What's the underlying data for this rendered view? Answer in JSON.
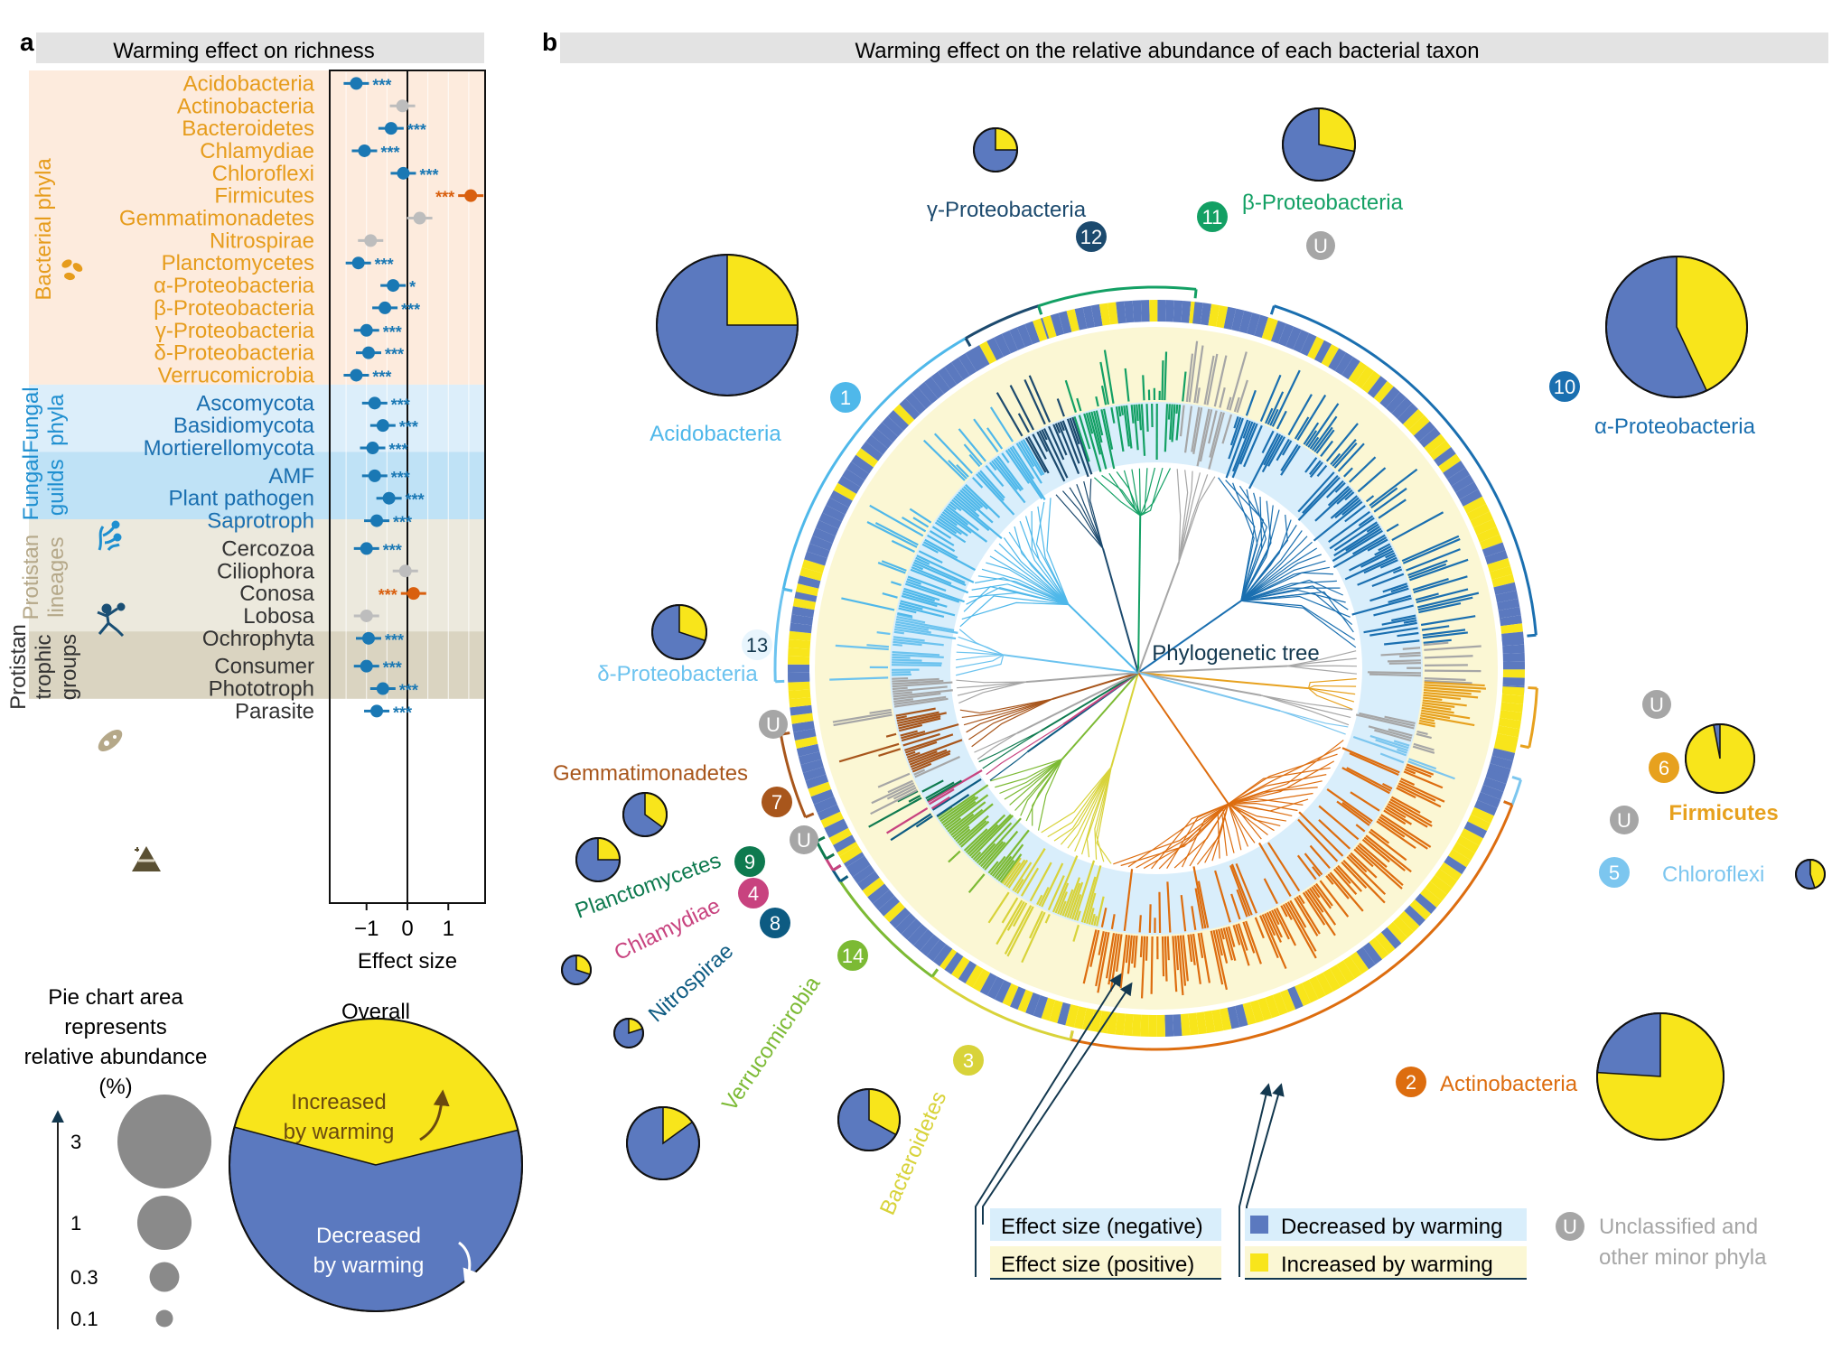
{
  "panel_a": {
    "letter": "a",
    "title": "Warming effect on richness",
    "xlabel": "Effect size",
    "ticks": [
      "−1",
      "0",
      "1"
    ],
    "tick_values": [
      -1,
      0,
      1
    ],
    "xlim": [
      -1.9,
      1.9
    ],
    "colors": {
      "negative": "#1a78b4",
      "positive": "#d95f0e",
      "ns": "#bdbdbd"
    },
    "groups": [
      {
        "name": "Bacterial phyla",
        "bg": "#fdebdd",
        "label_color": "#e69c1c",
        "rows": [
          {
            "label": "Acidobacteria",
            "value": -1.25,
            "sig": "***",
            "dir": "negative"
          },
          {
            "label": "Actinobacteria",
            "value": -0.12,
            "sig": "",
            "dir": "ns"
          },
          {
            "label": "Bacteroidetes",
            "value": -0.4,
            "sig": "***",
            "dir": "negative"
          },
          {
            "label": "Chlamydiae",
            "value": -1.05,
            "sig": "***",
            "dir": "negative"
          },
          {
            "label": "Chloroflexi",
            "value": -0.1,
            "sig": "***",
            "dir": "negative"
          },
          {
            "label": "Firmicutes",
            "value": 1.55,
            "sig": "***",
            "dir": "positive"
          },
          {
            "label": "Gemmatimonadetes",
            "value": 0.3,
            "sig": "",
            "dir": "ns"
          },
          {
            "label": "Nitrospirae",
            "value": -0.9,
            "sig": "",
            "dir": "ns"
          },
          {
            "label": "Planctomycetes",
            "value": -1.2,
            "sig": "***",
            "dir": "negative"
          },
          {
            "label": "α-Proteobacteria",
            "value": -0.35,
            "sig": "*",
            "dir": "negative"
          },
          {
            "label": "β-Proteobacteria",
            "value": -0.55,
            "sig": "***",
            "dir": "negative"
          },
          {
            "label": "γ-Proteobacteria",
            "value": -1.0,
            "sig": "***",
            "dir": "negative"
          },
          {
            "label": "δ-Proteobacteria",
            "value": -0.95,
            "sig": "***",
            "dir": "negative"
          },
          {
            "label": "Verrucomicrobia",
            "value": -1.25,
            "sig": "***",
            "dir": "negative"
          }
        ]
      },
      {
        "name": "Fungal phyla",
        "bg": "#dceefa",
        "label_color": "#1f8fd0",
        "rows": [
          {
            "label": "Ascomycota",
            "value": -0.8,
            "sig": "***",
            "dir": "negative"
          },
          {
            "label": "Basidiomycota",
            "value": -0.6,
            "sig": "***",
            "dir": "negative"
          },
          {
            "label": "Mortierellomycota",
            "value": -0.85,
            "sig": "***",
            "dir": "negative"
          }
        ]
      },
      {
        "name": "Fungal guilds",
        "bg": "#bfe2f6",
        "label_color": "#1f8fd0",
        "rows": [
          {
            "label": "AMF",
            "value": -0.8,
            "sig": "***",
            "dir": "negative"
          },
          {
            "label": "Plant pathogen",
            "value": -0.45,
            "sig": "***",
            "dir": "negative"
          },
          {
            "label": "Saprotroph",
            "value": -0.75,
            "sig": "***",
            "dir": "negative"
          }
        ]
      },
      {
        "name": "Protistan lineages",
        "bg": "#ece9dd",
        "label_color": "#b5a889",
        "rows": [
          {
            "label": "Cercozoa",
            "value": -1.0,
            "sig": "***",
            "dir": "negative"
          },
          {
            "label": "Ciliophora",
            "value": -0.05,
            "sig": "",
            "dir": "ns"
          },
          {
            "label": "Conosa",
            "value": 0.15,
            "sig": "***",
            "dir": "positive"
          },
          {
            "label": "Lobosa",
            "value": -1.0,
            "sig": "",
            "dir": "ns"
          },
          {
            "label": "Ochrophyta",
            "value": -0.95,
            "sig": "***",
            "dir": "negative"
          }
        ]
      },
      {
        "name": "Protistan trophic groups",
        "bg": "#dad4c1",
        "label_color": "#333333",
        "rows": [
          {
            "label": "Consumer",
            "value": -1.0,
            "sig": "***",
            "dir": "negative"
          },
          {
            "label": "Phototroph",
            "value": -0.6,
            "sig": "***",
            "dir": "negative"
          },
          {
            "label": "Parasite",
            "value": -0.75,
            "sig": "***",
            "dir": "negative"
          }
        ]
      }
    ]
  },
  "legend_a": {
    "title": [
      "Pie chart area",
      "represents",
      "relative abundance",
      "(%)"
    ],
    "sizes": [
      {
        "label": "3",
        "value": 3
      },
      {
        "label": "1",
        "value": 1
      },
      {
        "label": "0.3",
        "value": 0.3
      },
      {
        "label": "0.1",
        "value": 0.1
      }
    ],
    "overall_title": "Overall",
    "overall_increased_fraction": 0.42,
    "increased_text": [
      "Increased",
      "by warming"
    ],
    "decreased_text": [
      "Decreased",
      "by warming"
    ]
  },
  "panel_b": {
    "letter": "b",
    "title": "Warming effect on the relative abundance of each bacterial taxon",
    "center_label": "Phylogenetic tree",
    "colors": {
      "decreased": "#5b79bf",
      "increased": "#f8e51b",
      "unclassified": "#a6a6a6"
    },
    "clades": [
      {
        "num": "1",
        "label": "Acidobacteria",
        "color": "#4fb8ea",
        "increased_fraction": 0.25
      },
      {
        "num": "2",
        "label": "Actinobacteria",
        "color": "#dd6d0f",
        "increased_fraction": 0.76
      },
      {
        "num": "3",
        "label": "Bacteroidetes",
        "color": "#d8d33a",
        "increased_fraction": 0.33
      },
      {
        "num": "4",
        "label": "Chlamydiae",
        "color": "#c8437f",
        "increased_fraction": 0.3
      },
      {
        "num": "5",
        "label": "Chloroflexi",
        "color": "#7cc6ef",
        "increased_fraction": 0.45
      },
      {
        "num": "6",
        "label": "Firmicutes",
        "color": "#e7a11e",
        "increased_fraction": 0.97
      },
      {
        "num": "7",
        "label": "Gemmatimonadetes",
        "color": "#a8561c",
        "increased_fraction": 0.35
      },
      {
        "num": "8",
        "label": "Nitrospirae",
        "color": "#0d5b82",
        "increased_fraction": 0.2
      },
      {
        "num": "9",
        "label": "Planctomycetes",
        "color": "#0e7a4f",
        "increased_fraction": 0.25
      },
      {
        "num": "10",
        "label": "α-Proteobacteria",
        "color": "#1a6fb0",
        "increased_fraction": 0.43
      },
      {
        "num": "11",
        "label": "β-Proteobacteria",
        "color": "#13a064",
        "increased_fraction": 0.28
      },
      {
        "num": "12",
        "label": "γ-Proteobacteria",
        "color": "#1c4a6e",
        "increased_fraction": 0.25
      },
      {
        "num": "13",
        "label": "δ-Proteobacteria",
        "color": "#6cc3ef",
        "increased_fraction": 0.3
      },
      {
        "num": "14",
        "label": "Verrucomicrobia",
        "color": "#7cba34",
        "increased_fraction": 0.15
      }
    ],
    "unclassified_badge": "U",
    "legend": {
      "negative": "Effect size (negative)",
      "positive": "Effect size (positive)",
      "decreased": "Decreased by warming",
      "increased": "Increased by warming",
      "unclassified": [
        "Unclassified and",
        "other minor phyla"
      ]
    }
  }
}
